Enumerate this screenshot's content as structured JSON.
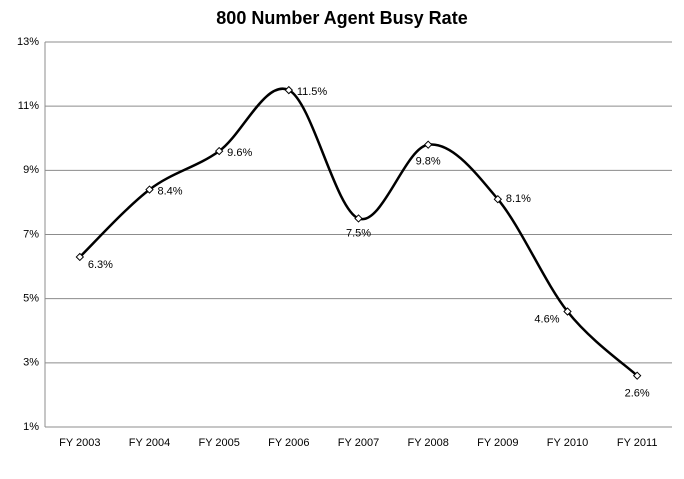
{
  "chart_data": {
    "type": "line",
    "title": "800 Number Agent Busy Rate",
    "categories": [
      "FY 2003",
      "FY 2004",
      "FY 2005",
      "FY 2006",
      "FY 2007",
      "FY 2008",
      "FY 2009",
      "FY 2010",
      "FY 2011"
    ],
    "values": [
      6.3,
      8.4,
      9.6,
      11.5,
      7.5,
      9.8,
      8.1,
      4.6,
      2.6
    ],
    "value_labels": [
      "6.3%",
      "8.4%",
      "9.6%",
      "11.5%",
      "7.5%",
      "9.8%",
      "8.1%",
      "4.6%",
      "2.6%"
    ],
    "color": "#000000",
    "ylim": [
      1,
      13
    ],
    "yticks": [
      {
        "value": 1,
        "label": "1%"
      },
      {
        "value": 3,
        "label": "3%"
      },
      {
        "value": 5,
        "label": "5%"
      },
      {
        "value": 7,
        "label": "7%"
      },
      {
        "value": 9,
        "label": "9%"
      },
      {
        "value": 11,
        "label": "11%"
      },
      {
        "value": 13,
        "label": "13%"
      }
    ],
    "grid": true,
    "smooth": true
  }
}
